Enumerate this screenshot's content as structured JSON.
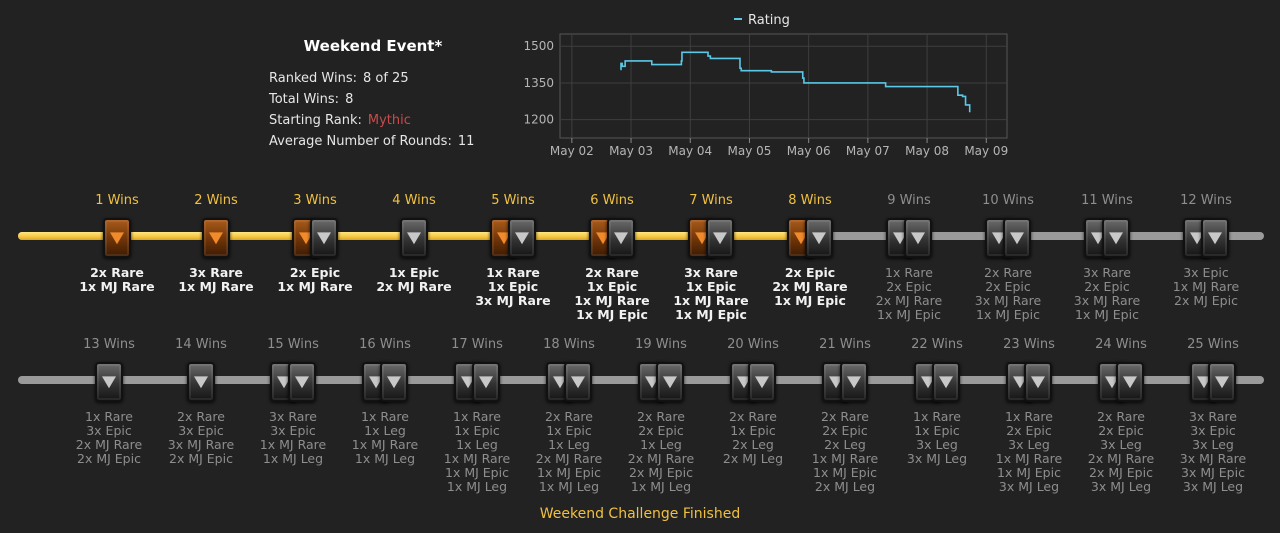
{
  "stats": {
    "title": "Weekend Event*",
    "ranked_wins_label": "Ranked Wins:",
    "ranked_wins_value": "8 of 25",
    "total_wins_label": "Total Wins:",
    "total_wins_value": "8",
    "starting_rank_label": "Starting Rank:",
    "starting_rank_value": "Mythic",
    "avg_rounds_label": "Average Number of Rounds:",
    "avg_rounds_value": "11",
    "rank_color": "#c94a4a"
  },
  "chart_data": {
    "type": "line",
    "title": "",
    "xlabel": "",
    "ylabel": "",
    "legend": "top",
    "grid": true,
    "line_color": "#5bc8e6",
    "series": [
      {
        "name": "Rating",
        "x": [
          2.82,
          2.83,
          2.85,
          2.9,
          3.35,
          3.85,
          3.86,
          4.28,
          4.3,
          4.34,
          4.82,
          4.84,
          4.86,
          5.33,
          5.37,
          5.88,
          5.9,
          5.92,
          6.6,
          7.25,
          7.3,
          8.5,
          8.52,
          8.6,
          8.65,
          8.72
        ],
        "y": [
          1405,
          1430,
          1418,
          1440,
          1425,
          1440,
          1475,
          1475,
          1460,
          1450,
          1450,
          1410,
          1400,
          1400,
          1395,
          1395,
          1370,
          1350,
          1350,
          1350,
          1335,
          1335,
          1300,
          1295,
          1260,
          1230
        ]
      }
    ],
    "x_ticks": [
      2,
      3,
      4,
      5,
      6,
      7,
      8,
      9
    ],
    "x_tick_labels": [
      "May 02",
      "May 03",
      "May 04",
      "May 05",
      "May 06",
      "May 07",
      "May 08",
      "May 09"
    ],
    "xlim": [
      1.8,
      9.35
    ],
    "y_ticks": [
      1200,
      1350,
      1500
    ],
    "ylim": [
      1125,
      1550
    ]
  },
  "progress": {
    "completed": 8,
    "total": 25,
    "tiers": [
      {
        "wins": "1 Wins",
        "icons": [
          "orange"
        ],
        "rewards": [
          "2x Rare",
          "1x MJ Rare"
        ]
      },
      {
        "wins": "2 Wins",
        "icons": [
          "orange"
        ],
        "rewards": [
          "3x Rare",
          "1x MJ Rare"
        ]
      },
      {
        "wins": "3 Wins",
        "icons": [
          "orange",
          "dark"
        ],
        "rewards": [
          "2x Epic",
          "1x MJ Rare"
        ]
      },
      {
        "wins": "4 Wins",
        "icons": [
          "dark"
        ],
        "rewards": [
          "1x Epic",
          "2x MJ Rare"
        ]
      },
      {
        "wins": "5 Wins",
        "icons": [
          "orange",
          "dark"
        ],
        "rewards": [
          "1x Rare",
          "1x Epic",
          "3x MJ Rare"
        ]
      },
      {
        "wins": "6 Wins",
        "icons": [
          "orange",
          "dark"
        ],
        "rewards": [
          "2x Rare",
          "1x Epic",
          "1x MJ Rare",
          "1x MJ Epic"
        ]
      },
      {
        "wins": "7 Wins",
        "icons": [
          "orange",
          "dark"
        ],
        "rewards": [
          "3x Rare",
          "1x Epic",
          "1x MJ Rare",
          "1x MJ Epic"
        ]
      },
      {
        "wins": "8 Wins",
        "icons": [
          "orange",
          "dark"
        ],
        "rewards": [
          "2x Epic",
          "2x MJ Rare",
          "1x MJ Epic"
        ]
      },
      {
        "wins": "9 Wins",
        "icons": [
          "dark",
          "dark"
        ],
        "rewards": [
          "1x Rare",
          "2x Epic",
          "2x MJ Rare",
          "1x MJ Epic"
        ]
      },
      {
        "wins": "10 Wins",
        "icons": [
          "dark",
          "dark"
        ],
        "rewards": [
          "2x Rare",
          "2x Epic",
          "3x MJ Rare",
          "1x MJ Epic"
        ]
      },
      {
        "wins": "11 Wins",
        "icons": [
          "dark",
          "dark"
        ],
        "rewards": [
          "3x Rare",
          "2x Epic",
          "3x MJ Rare",
          "1x MJ Epic"
        ]
      },
      {
        "wins": "12 Wins",
        "icons": [
          "dark",
          "dark"
        ],
        "rewards": [
          "3x Epic",
          "1x MJ Rare",
          "2x MJ Epic"
        ]
      },
      {
        "wins": "13 Wins",
        "icons": [
          "dark"
        ],
        "rewards": [
          "1x Rare",
          "3x Epic",
          "2x MJ Rare",
          "2x MJ Epic"
        ]
      },
      {
        "wins": "14 Wins",
        "icons": [
          "dark"
        ],
        "rewards": [
          "2x Rare",
          "3x Epic",
          "3x MJ Rare",
          "2x MJ Epic"
        ]
      },
      {
        "wins": "15 Wins",
        "icons": [
          "dark",
          "dark"
        ],
        "rewards": [
          "3x Rare",
          "3x Epic",
          "1x MJ Rare",
          "1x MJ Leg"
        ]
      },
      {
        "wins": "16 Wins",
        "icons": [
          "dark",
          "dark"
        ],
        "rewards": [
          "1x Rare",
          "1x Leg",
          "1x MJ Rare",
          "1x MJ Leg"
        ]
      },
      {
        "wins": "17 Wins",
        "icons": [
          "dark",
          "dark"
        ],
        "rewards": [
          "1x Rare",
          "1x Epic",
          "1x Leg",
          "1x MJ Rare",
          "1x MJ Epic",
          "1x MJ Leg"
        ]
      },
      {
        "wins": "18 Wins",
        "icons": [
          "dark",
          "dark"
        ],
        "rewards": [
          "2x Rare",
          "1x Epic",
          "1x Leg",
          "2x MJ Rare",
          "1x MJ Epic",
          "1x MJ Leg"
        ]
      },
      {
        "wins": "19 Wins",
        "icons": [
          "dark",
          "dark"
        ],
        "rewards": [
          "2x Rare",
          "2x Epic",
          "1x Leg",
          "2x MJ Rare",
          "2x MJ Epic",
          "1x MJ Leg"
        ]
      },
      {
        "wins": "20 Wins",
        "icons": [
          "dark",
          "dark"
        ],
        "rewards": [
          "2x Rare",
          "1x Epic",
          "2x Leg",
          "2x MJ Leg"
        ]
      },
      {
        "wins": "21 Wins",
        "icons": [
          "dark",
          "dark"
        ],
        "rewards": [
          "2x Rare",
          "2x Epic",
          "2x Leg",
          "1x MJ Rare",
          "1x MJ Epic",
          "2x MJ Leg"
        ]
      },
      {
        "wins": "22 Wins",
        "icons": [
          "dark",
          "dark"
        ],
        "rewards": [
          "1x Rare",
          "1x Epic",
          "3x Leg",
          "3x MJ Leg"
        ]
      },
      {
        "wins": "23 Wins",
        "icons": [
          "dark",
          "dark"
        ],
        "rewards": [
          "1x Rare",
          "2x Epic",
          "3x Leg",
          "1x MJ Rare",
          "1x MJ Epic",
          "3x MJ Leg"
        ]
      },
      {
        "wins": "24 Wins",
        "icons": [
          "dark",
          "dark"
        ],
        "rewards": [
          "2x Rare",
          "2x Epic",
          "3x Leg",
          "2x MJ Rare",
          "2x MJ Epic",
          "3x MJ Leg"
        ]
      },
      {
        "wins": "25 Wins",
        "icons": [
          "dark",
          "dark"
        ],
        "rewards": [
          "3x Rare",
          "3x Epic",
          "3x Leg",
          "3x MJ Rare",
          "3x MJ Epic",
          "3x MJ Leg"
        ]
      }
    ]
  },
  "footer": {
    "text": "Weekend Challenge Finished"
  },
  "colors": {
    "gold": "#f0c040",
    "track_gray": "#9a9a9a",
    "background": "#222222"
  }
}
